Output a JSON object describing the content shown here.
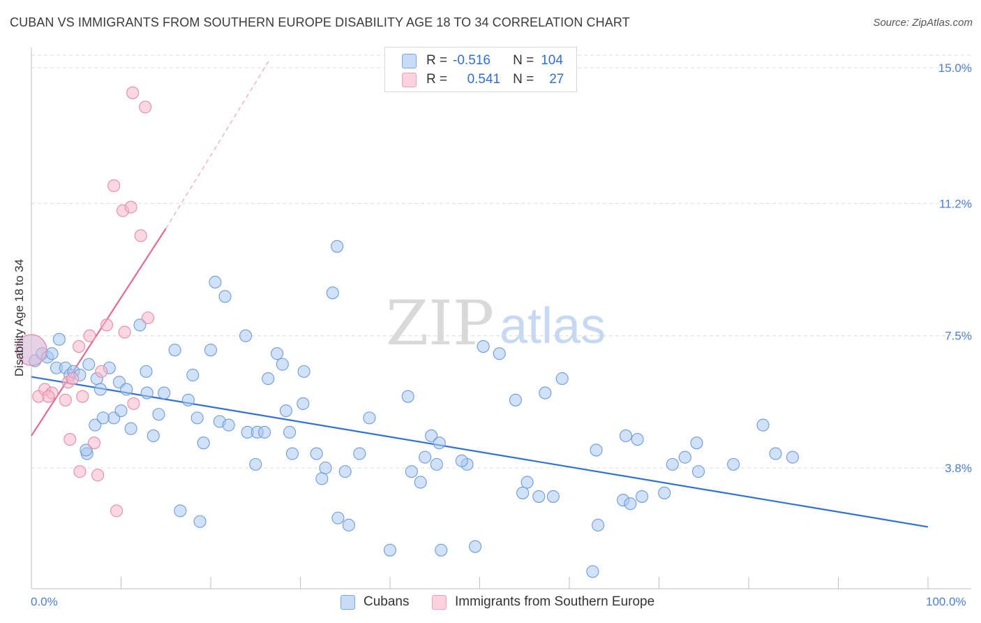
{
  "title": "CUBAN VS IMMIGRANTS FROM SOUTHERN EUROPE DISABILITY AGE 18 TO 34 CORRELATION CHART",
  "source": "Source: ZipAtlas.com",
  "watermark": {
    "zip": "ZIP",
    "atlas": "atlas"
  },
  "legend": {
    "rows": [
      {
        "r_label": "R =",
        "r_value": "-0.516",
        "n_label": "N =",
        "n_value": "104",
        "color": "#aac8f2"
      },
      {
        "r_label": "R =",
        "r_value": "0.541",
        "n_label": "N =",
        "n_value": "27",
        "color": "#f6b8cb"
      }
    ]
  },
  "bottom_legend": {
    "cubans": "Cubans",
    "immigrants": "Immigrants from Southern Europe"
  },
  "chart_data": {
    "type": "scatter",
    "title": "CUBAN VS IMMIGRANTS FROM SOUTHERN EUROPE DISABILITY AGE 18 TO 34 CORRELATION CHART",
    "xlabel": "",
    "ylabel": "Disability Age 18 to 34",
    "xlim": [
      0,
      100
    ],
    "ylim": [
      0,
      15.5
    ],
    "x_tick_labels": [
      "0.0%",
      "100.0%"
    ],
    "y_ticks": [
      3.8,
      7.5,
      11.2,
      15.0
    ],
    "y_tick_labels": [
      "3.8%",
      "7.5%",
      "11.2%",
      "15.0%"
    ],
    "grid": true,
    "series": [
      {
        "name": "Cubans",
        "color": "#aac8f2",
        "stroke": "#6c9be0",
        "trend_color": "#2f72d4",
        "trend": {
          "x0": 0,
          "y0": 6.35,
          "x1": 100,
          "y1": 2.15
        },
        "points": [
          [
            0.0,
            7.1
          ],
          [
            0.4,
            6.8
          ],
          [
            1.2,
            7.0
          ],
          [
            1.8,
            6.9
          ],
          [
            2.3,
            7.0
          ],
          [
            3.1,
            7.4
          ],
          [
            2.8,
            6.6
          ],
          [
            3.8,
            6.6
          ],
          [
            4.3,
            6.4
          ],
          [
            4.7,
            6.5
          ],
          [
            5.4,
            6.4
          ],
          [
            6.4,
            6.7
          ],
          [
            7.3,
            6.3
          ],
          [
            7.7,
            6.0
          ],
          [
            8.7,
            6.6
          ],
          [
            9.8,
            6.2
          ],
          [
            10.6,
            6.0
          ],
          [
            12.1,
            7.8
          ],
          [
            12.8,
            6.5
          ],
          [
            12.9,
            5.9
          ],
          [
            14.8,
            5.9
          ],
          [
            16.0,
            7.1
          ],
          [
            17.5,
            5.7
          ],
          [
            18.0,
            6.4
          ],
          [
            18.5,
            5.2
          ],
          [
            19.2,
            4.5
          ],
          [
            20.0,
            7.1
          ],
          [
            21.0,
            5.1
          ],
          [
            22.0,
            5.0
          ],
          [
            20.5,
            9.0
          ],
          [
            21.6,
            8.6
          ],
          [
            23.9,
            7.5
          ],
          [
            24.1,
            4.8
          ],
          [
            25.2,
            4.8
          ],
          [
            26.0,
            4.8
          ],
          [
            26.4,
            6.3
          ],
          [
            27.4,
            7.0
          ],
          [
            28.0,
            6.7
          ],
          [
            28.4,
            5.4
          ],
          [
            28.8,
            4.8
          ],
          [
            29.1,
            4.2
          ],
          [
            30.3,
            5.6
          ],
          [
            30.4,
            6.5
          ],
          [
            25.0,
            3.9
          ],
          [
            31.8,
            4.2
          ],
          [
            32.4,
            3.5
          ],
          [
            32.8,
            3.8
          ],
          [
            33.6,
            8.7
          ],
          [
            34.1,
            10.0
          ],
          [
            34.2,
            2.4
          ],
          [
            35.0,
            3.7
          ],
          [
            35.4,
            2.2
          ],
          [
            36.6,
            4.2
          ],
          [
            37.7,
            5.2
          ],
          [
            40.0,
            1.5
          ],
          [
            42.0,
            5.8
          ],
          [
            42.4,
            3.7
          ],
          [
            43.4,
            3.4
          ],
          [
            43.9,
            4.1
          ],
          [
            44.6,
            4.7
          ],
          [
            45.2,
            3.9
          ],
          [
            45.5,
            4.5
          ],
          [
            45.7,
            1.5
          ],
          [
            48.6,
            3.9
          ],
          [
            49.5,
            1.6
          ],
          [
            50.4,
            7.2
          ],
          [
            52.2,
            7.0
          ],
          [
            54.0,
            5.7
          ],
          [
            54.8,
            3.1
          ],
          [
            55.3,
            3.4
          ],
          [
            56.6,
            3.0
          ],
          [
            57.3,
            5.9
          ],
          [
            58.2,
            3.0
          ],
          [
            59.2,
            6.3
          ],
          [
            63.0,
            4.3
          ],
          [
            63.2,
            2.2
          ],
          [
            66.0,
            2.9
          ],
          [
            66.3,
            4.7
          ],
          [
            66.8,
            2.8
          ],
          [
            67.6,
            4.6
          ],
          [
            68.1,
            3.0
          ],
          [
            70.6,
            3.1
          ],
          [
            71.5,
            3.9
          ],
          [
            72.9,
            4.1
          ],
          [
            74.2,
            4.5
          ],
          [
            74.4,
            3.7
          ],
          [
            78.3,
            3.9
          ],
          [
            81.6,
            5.0
          ],
          [
            83.0,
            4.2
          ],
          [
            84.9,
            4.1
          ],
          [
            62.6,
            0.9
          ],
          [
            48.0,
            4.0
          ],
          [
            6.2,
            4.2
          ],
          [
            7.1,
            5.0
          ],
          [
            9.2,
            5.2
          ],
          [
            11.1,
            4.9
          ],
          [
            13.6,
            4.7
          ],
          [
            14.2,
            5.3
          ],
          [
            16.6,
            2.6
          ],
          [
            18.8,
            2.3
          ],
          [
            8.0,
            5.2
          ],
          [
            6.1,
            4.3
          ],
          [
            10.0,
            5.4
          ]
        ]
      },
      {
        "name": "Immigrants from Southern Europe",
        "color": "#f6b8cb",
        "stroke": "#e88aa8",
        "trend_color": "#e06a93",
        "trend": {
          "x0": 0,
          "y0": 4.7,
          "x1": 15.0,
          "y1": 10.5
        },
        "trend_dashed": {
          "x0": 15.0,
          "y0": 10.5,
          "x1": 26.5,
          "y1": 15.2
        },
        "points": [
          [
            0.0,
            7.1
          ],
          [
            0.8,
            5.8
          ],
          [
            1.5,
            6.0
          ],
          [
            2.3,
            5.9
          ],
          [
            1.9,
            5.8
          ],
          [
            4.1,
            6.2
          ],
          [
            4.6,
            6.3
          ],
          [
            3.8,
            5.7
          ],
          [
            5.7,
            5.8
          ],
          [
            4.3,
            4.6
          ],
          [
            5.3,
            7.2
          ],
          [
            6.5,
            7.5
          ],
          [
            7.0,
            4.5
          ],
          [
            7.8,
            6.5
          ],
          [
            8.4,
            7.8
          ],
          [
            10.4,
            7.6
          ],
          [
            9.2,
            11.7
          ],
          [
            10.2,
            11.0
          ],
          [
            11.1,
            11.1
          ],
          [
            12.2,
            10.3
          ],
          [
            13.0,
            8.0
          ],
          [
            11.4,
            5.6
          ],
          [
            5.4,
            3.7
          ],
          [
            7.4,
            3.6
          ],
          [
            9.5,
            2.6
          ],
          [
            11.3,
            14.3
          ],
          [
            12.7,
            13.9
          ]
        ]
      }
    ]
  }
}
